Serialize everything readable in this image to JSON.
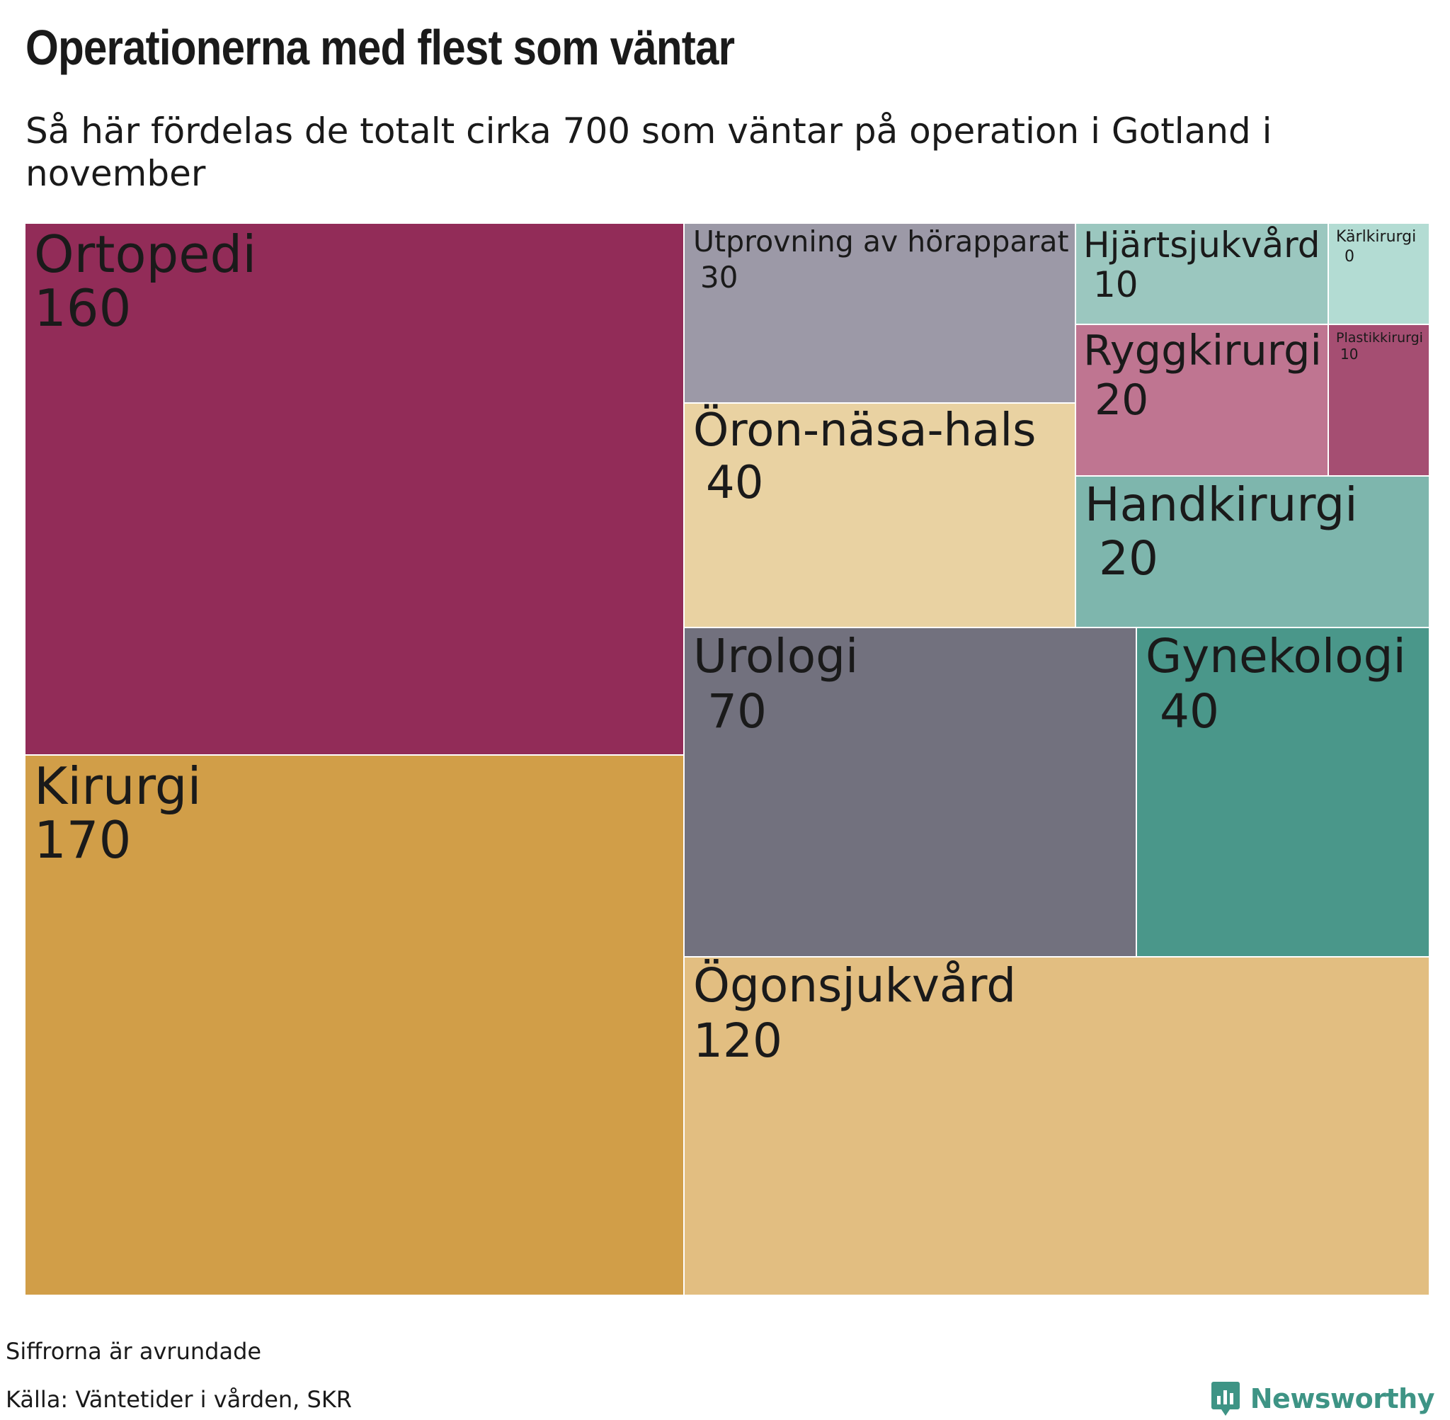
{
  "title": "Operationerna med flest som väntar",
  "subtitle": "Så här fördelas de totalt cirka 700 som väntar på operation i Gotland i november",
  "note": "Siffrorna är avrundade",
  "source": "Källa: Väntetider i vården, SKR",
  "brand": {
    "name": "Newsworthy",
    "color": "#3e9485",
    "icon": "bar-chart-bubble-icon"
  },
  "chart_data": {
    "type": "treemap",
    "title": "Operationerna med flest som väntar",
    "subtitle": "Så här fördelas de totalt cirka 700 som väntar på operation i Gotland i november",
    "total_approx": 700,
    "items": [
      {
        "name": "Ortopedi",
        "value": 160,
        "color": "#922c58"
      },
      {
        "name": "Kirurgi",
        "value": 170,
        "color": "#d19e48"
      },
      {
        "name": "Utprovning av hörapparat",
        "value": 30,
        "color": "#9c99a7"
      },
      {
        "name": "Öron-näsa-hals",
        "value": 40,
        "color": "#e9d2a2"
      },
      {
        "name": "Hjärtsjukvård",
        "value": 10,
        "color": "#9bc7bf"
      },
      {
        "name": "Kärlkirurgi",
        "value": 0,
        "color": "#b3dcd3"
      },
      {
        "name": "Ryggkirurgi",
        "value": 20,
        "color": "#bf7591"
      },
      {
        "name": "Plastikkirurgi",
        "value": 10,
        "color": "#a54e72"
      },
      {
        "name": "Handkirurgi",
        "value": 20,
        "color": "#7eb6ad"
      },
      {
        "name": "Urologi",
        "value": 70,
        "color": "#72717e"
      },
      {
        "name": "Gynekologi",
        "value": 40,
        "color": "#4a978a"
      },
      {
        "name": "Ögonsjukvård",
        "value": 120,
        "color": "#e2be81"
      }
    ]
  }
}
